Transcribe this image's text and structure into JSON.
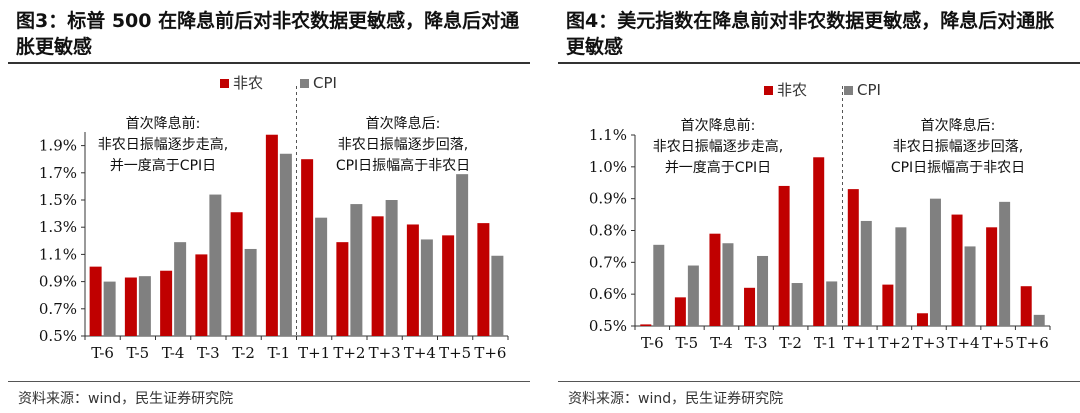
{
  "panels": [
    {
      "title": "图3：标普 500 在降息前后对非农数据更敏感，降息后对通胀更敏感",
      "source": "资料来源：wind，民生证券研究院",
      "legend": [
        "非农",
        "CPI"
      ],
      "notes": {
        "before": [
          "首次降息前:",
          "非农日振幅逐步走高,",
          "并一度高于CPI日"
        ],
        "after": [
          "首次降息后:",
          "非农日振幅逐步回落,",
          "CPI日振幅高于非农日"
        ]
      }
    },
    {
      "title": "图4：美元指数在降息前对非农数据更敏感，降息后对通胀更敏感",
      "source": "资料来源：wind，民生证券研究院",
      "legend": [
        "非农",
        "CPI"
      ],
      "notes": {
        "before": [
          "首次降息前:",
          "非农日振幅逐步走高,",
          "并一度高于CPI日"
        ],
        "after": [
          "首次降息后:",
          "非农日振幅逐步回落,",
          "CPI日振幅高于非农日"
        ]
      }
    }
  ],
  "chart_data": [
    {
      "type": "bar",
      "categories": [
        "T-6",
        "T-5",
        "T-4",
        "T-3",
        "T-2",
        "T-1",
        "T+1",
        "T+2",
        "T+3",
        "T+4",
        "T+5",
        "T+6"
      ],
      "series": [
        {
          "name": "非农",
          "color": "#c00000",
          "values": [
            1.01,
            0.93,
            0.98,
            1.1,
            1.41,
            1.98,
            1.8,
            1.19,
            1.38,
            1.32,
            1.24,
            1.33
          ]
        },
        {
          "name": "CPI",
          "color": "#808080",
          "values": [
            0.9,
            0.94,
            1.19,
            1.54,
            1.14,
            1.84,
            1.37,
            1.47,
            1.5,
            1.21,
            1.69,
            1.09
          ]
        }
      ],
      "ylim": [
        0.5,
        2.0
      ],
      "yticks": [
        "0.5%",
        "0.7%",
        "0.9%",
        "1.1%",
        "1.3%",
        "1.5%",
        "1.7%",
        "1.9%"
      ],
      "ytick_values": [
        0.5,
        0.7,
        0.9,
        1.1,
        1.3,
        1.5,
        1.7,
        1.9
      ],
      "legend_position": "top-center",
      "grid": false
    },
    {
      "type": "bar",
      "categories": [
        "T-6",
        "T-5",
        "T-4",
        "T-3",
        "T-2",
        "T-1",
        "T+1",
        "T+2",
        "T+3",
        "T+4",
        "T+5",
        "T+6"
      ],
      "series": [
        {
          "name": "非农",
          "color": "#c00000",
          "values": [
            0.505,
            0.59,
            0.79,
            0.62,
            0.94,
            1.03,
            0.93,
            0.63,
            0.54,
            0.85,
            0.81,
            0.625
          ]
        },
        {
          "name": "CPI",
          "color": "#808080",
          "values": [
            0.755,
            0.69,
            0.76,
            0.72,
            0.635,
            0.64,
            0.83,
            0.81,
            0.9,
            0.75,
            0.89,
            0.535
          ]
        }
      ],
      "ylim": [
        0.5,
        1.1
      ],
      "yticks": [
        "0.5%",
        "0.6%",
        "0.7%",
        "0.8%",
        "0.9%",
        "1.0%",
        "1.1%"
      ],
      "ytick_values": [
        0.5,
        0.6,
        0.7,
        0.8,
        0.9,
        1.0,
        1.1
      ],
      "legend_position": "top-center",
      "grid": false
    }
  ]
}
